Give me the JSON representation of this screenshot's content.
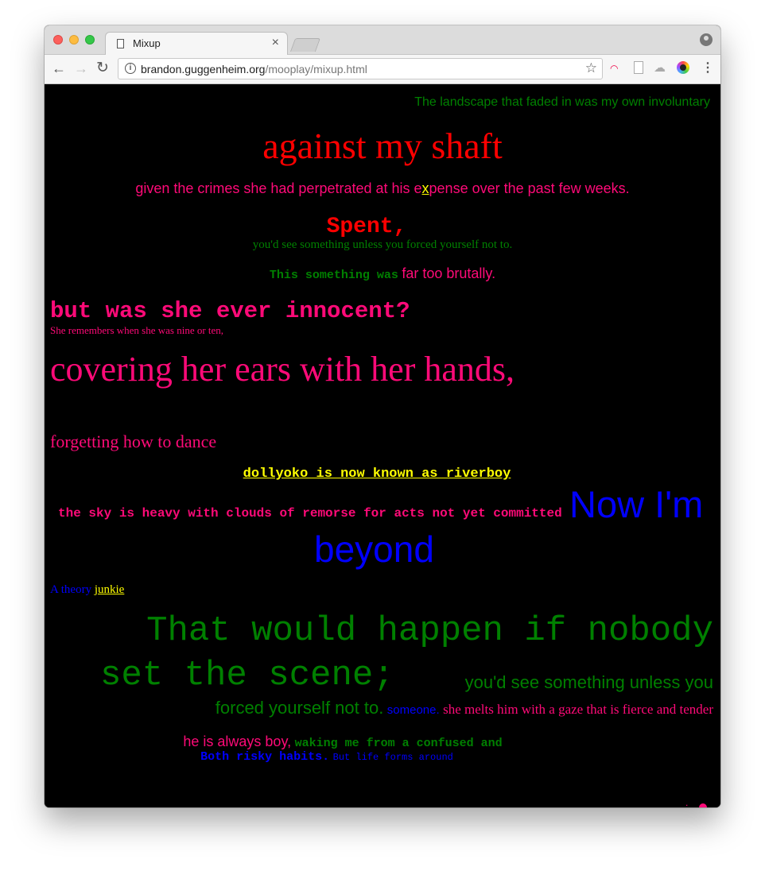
{
  "browser": {
    "tab_title": "Mixup",
    "tab_close": "×",
    "url_host": "brandon.guggenheim.org",
    "url_path": "/mooplay/mixup.html",
    "back": "←",
    "forward": "→",
    "reload": "↻",
    "star": "☆",
    "menu": "⋮",
    "info": "i"
  },
  "lines": {
    "l1": "The landscape that faded in was my own involuntary",
    "l2": "against my shaft",
    "l3a": "given the crimes she had perpetrated at his e",
    "l3b": "x",
    "l3c": "pense over the past few weeks.",
    "l4": "Spent,",
    "l5": "you'd see something unless you forced yourself not to.",
    "l6a": "This something was",
    "l6b": "far too brutally.",
    "l7": "but was she ever innocent?",
    "l8": "She remembers when she was nine or ten,",
    "l9": "covering her ears with her hands,",
    "l10": "forgetting how to dance",
    "l11": "dollyoko is now known as riverboy",
    "l12a": "the sky is heavy with clouds of remorse for acts not yet committed",
    "l12b": "Now I'm",
    "l13": "beyond",
    "l14a": "A theory",
    "l14b": "junkie",
    "l15": "That would happen if nobody",
    "l16a": "set the scene;",
    "l16b": "you'd see something unless you",
    "l17a": "forced yourself not to.",
    "l17b": "someone.",
    "l17c": "she melts him with a gaze that is fierce and tender",
    "l18a": "he is always boy,",
    "l18b": "waking me from a confused and",
    "l19a": "Both risky habits.",
    "l19b": "But life forms around",
    "l20": "."
  }
}
